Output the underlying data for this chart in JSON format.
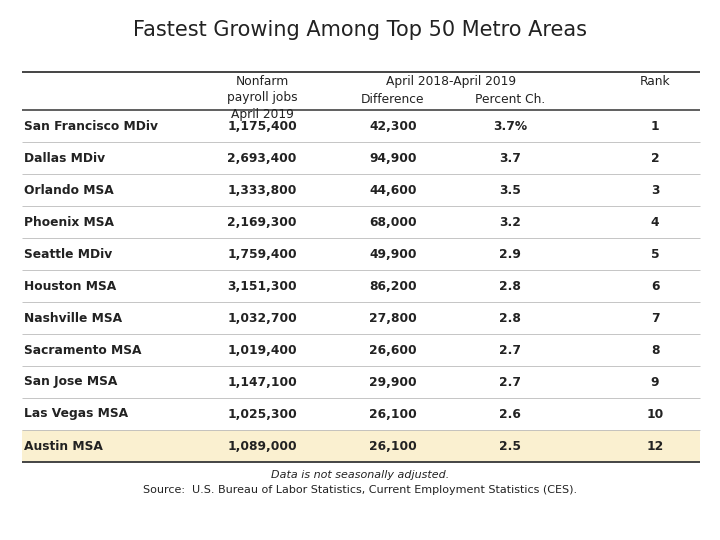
{
  "title": "Fastest Growing Among Top 50 Metro Areas",
  "rows": [
    {
      "metro": "San Francisco MDiv",
      "jobs": "1,175,400",
      "diff": "42,300",
      "pct": "3.7%",
      "rank": "1"
    },
    {
      "metro": "Dallas MDiv",
      "jobs": "2,693,400",
      "diff": "94,900",
      "pct": "3.7",
      "rank": "2"
    },
    {
      "metro": "Orlando MSA",
      "jobs": "1,333,800",
      "diff": "44,600",
      "pct": "3.5",
      "rank": "3"
    },
    {
      "metro": "Phoenix MSA",
      "jobs": "2,169,300",
      "diff": "68,000",
      "pct": "3.2",
      "rank": "4"
    },
    {
      "metro": "Seattle MDiv",
      "jobs": "1,759,400",
      "diff": "49,900",
      "pct": "2.9",
      "rank": "5"
    },
    {
      "metro": "Houston MSA",
      "jobs": "3,151,300",
      "diff": "86,200",
      "pct": "2.8",
      "rank": "6"
    },
    {
      "metro": "Nashville MSA",
      "jobs": "1,032,700",
      "diff": "27,800",
      "pct": "2.8",
      "rank": "7"
    },
    {
      "metro": "Sacramento MSA",
      "jobs": "1,019,400",
      "diff": "26,600",
      "pct": "2.7",
      "rank": "8"
    },
    {
      "metro": "San Jose MSA",
      "jobs": "1,147,100",
      "diff": "29,900",
      "pct": "2.7",
      "rank": "9"
    },
    {
      "metro": "Las Vegas MSA",
      "jobs": "1,025,300",
      "diff": "26,100",
      "pct": "2.6",
      "rank": "10"
    },
    {
      "metro": "Austin MSA",
      "jobs": "1,089,000",
      "diff": "26,100",
      "pct": "2.5",
      "rank": "12"
    }
  ],
  "austin_highlight_color": "#FAF0D0",
  "header_line_color": "#444444",
  "row_line_color": "#bbbbbb",
  "text_color": "#222222",
  "footnote1": "Data is not seasonally adjusted.",
  "footnote2": "Source:  U.S. Bureau of Labor Statistics, Current Employment Statistics (CES).",
  "title_fontsize": 15,
  "header_fontsize": 8.8,
  "cell_fontsize": 8.8,
  "footnote_fontsize": 8.0,
  "fig_width": 7.2,
  "fig_height": 5.4,
  "dpi": 100
}
